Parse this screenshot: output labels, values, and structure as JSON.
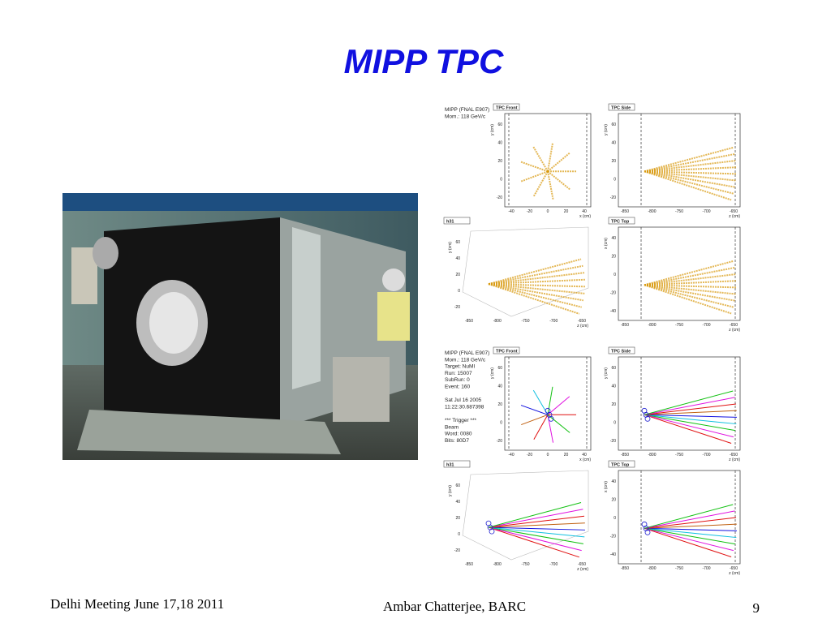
{
  "title": "MIPP TPC",
  "footer": {
    "left": "Delhi Meeting June 17,18 2011",
    "center": "Ambar Chatterjee, BARC",
    "page": "9"
  },
  "event_displays": [
    {
      "info": [
        "MIPP (FNAL E907)",
        "Mom.: 118 GeV/c"
      ],
      "panels": [
        {
          "title": "TPC Front",
          "y_label": "y (cm)",
          "x_label": "x (cm)",
          "yticks": [
            "60",
            "40",
            "20",
            "0",
            "-20"
          ],
          "xticks": [
            "-40",
            "-20",
            "0",
            "20",
            "40"
          ]
        },
        {
          "title": "TPC Side",
          "y_label": "y (cm)",
          "x_label": "z (cm)",
          "yticks": [
            "60",
            "40",
            "20",
            "0",
            "-20"
          ],
          "xticks": [
            "-850",
            "-800",
            "-750",
            "-700",
            "-650"
          ]
        },
        {
          "title": "h31",
          "y_label": "y (cm)",
          "x_label": "z (cm)",
          "yticks": [
            "60",
            "40",
            "20",
            "0",
            "-20"
          ],
          "xticks": [
            "-850",
            "-800",
            "-750",
            "-700",
            "-650"
          ]
        },
        {
          "title": "TPC Top",
          "y_label": "x (cm)",
          "x_label": "z (cm)",
          "yticks": [
            "40",
            "20",
            "0",
            "-20",
            "-40"
          ],
          "xticks": [
            "-850",
            "-800",
            "-750",
            "-700",
            "-650"
          ]
        }
      ]
    },
    {
      "info": [
        "MIPP (FNAL E907)",
        "Mom.: 118 GeV/c",
        "Target: NuMI",
        "Run:   15007",
        "SubRun: 0",
        "Event:  160",
        "",
        "Sat Jul 16 2005",
        "11:22:30.687398",
        "",
        "*** Trigger ***",
        "Beam",
        "Word: 0080",
        "Bits: 80D7"
      ],
      "panels": [
        {
          "title": "TPC Front",
          "y_label": "y (cm)",
          "x_label": "x (cm)",
          "yticks": [
            "60",
            "40",
            "20",
            "0",
            "-20"
          ],
          "xticks": [
            "-40",
            "-20",
            "0",
            "20",
            "40"
          ]
        },
        {
          "title": "TPC Side",
          "y_label": "y (cm)",
          "x_label": "z (cm)",
          "yticks": [
            "60",
            "40",
            "20",
            "0",
            "-20"
          ],
          "xticks": [
            "-850",
            "-800",
            "-750",
            "-700",
            "-650"
          ]
        },
        {
          "title": "h31",
          "y_label": "y (cm)",
          "x_label": "z (cm)",
          "yticks": [
            "60",
            "40",
            "20",
            "0",
            "-20"
          ],
          "xticks": [
            "-850",
            "-800",
            "-750",
            "-700",
            "-650"
          ]
        },
        {
          "title": "TPC Top",
          "y_label": "x (cm)",
          "x_label": "z (cm)",
          "yticks": [
            "40",
            "20",
            "0",
            "-20",
            "-40"
          ],
          "xticks": [
            "-850",
            "-800",
            "-750",
            "-700",
            "-650"
          ]
        }
      ]
    }
  ]
}
